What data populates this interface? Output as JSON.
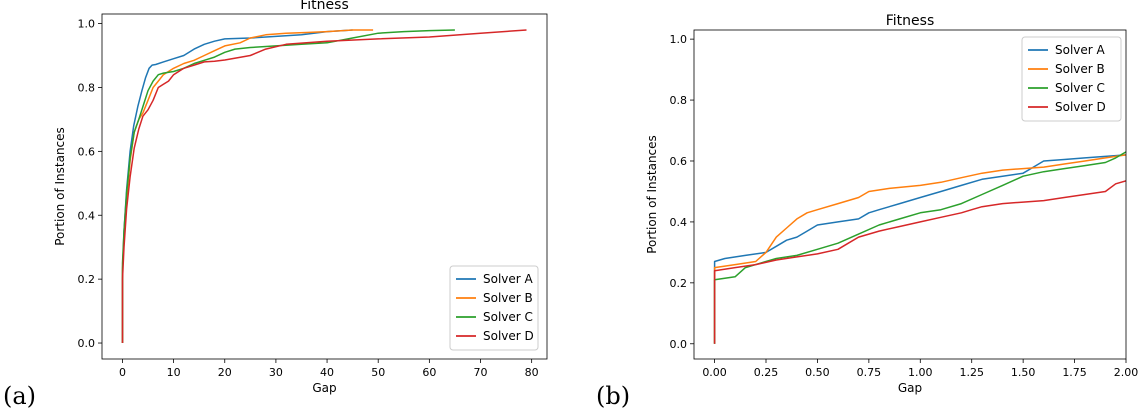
{
  "chart_data": [
    {
      "type": "line",
      "panel_label": "(a)",
      "title": "Fitness",
      "xlabel": "Gap",
      "ylabel": "Portion of Instances",
      "xlim": [
        -4.0,
        83.0
      ],
      "ylim": [
        -0.05,
        1.03
      ],
      "xticks": [
        0,
        10,
        20,
        30,
        40,
        50,
        60,
        70,
        80
      ],
      "xtick_labels": [
        "0",
        "10",
        "20",
        "30",
        "40",
        "50",
        "60",
        "70",
        "80"
      ],
      "yticks": [
        0.0,
        0.2,
        0.4,
        0.6,
        0.8,
        1.0
      ],
      "ytick_labels": [
        "0.0",
        "0.2",
        "0.4",
        "0.6",
        "0.8",
        "1.0"
      ],
      "grid": false,
      "legend": "lower-right",
      "series": [
        {
          "name": "Solver A",
          "color": "#1f77b4",
          "x": [
            0,
            0,
            0.3,
            0.8,
            1.5,
            2.2,
            3,
            3.8,
            4.5,
            5.2,
            5.8,
            6.5,
            8,
            10,
            12,
            14,
            16,
            18,
            20,
            25,
            30,
            35,
            40,
            45
          ],
          "y": [
            0,
            0.22,
            0.35,
            0.48,
            0.6,
            0.68,
            0.74,
            0.79,
            0.83,
            0.86,
            0.87,
            0.872,
            0.88,
            0.89,
            0.9,
            0.92,
            0.935,
            0.945,
            0.952,
            0.955,
            0.96,
            0.965,
            0.975,
            0.98
          ]
        },
        {
          "name": "Solver B",
          "color": "#ff7f0e",
          "x": [
            0,
            0,
            0.3,
            0.8,
            1.5,
            2.3,
            3.2,
            4,
            5,
            6,
            7,
            8,
            10,
            12,
            14,
            16,
            18,
            20,
            23,
            25,
            28,
            32,
            36,
            40,
            45,
            49
          ],
          "y": [
            0,
            0.23,
            0.33,
            0.45,
            0.57,
            0.66,
            0.7,
            0.72,
            0.76,
            0.8,
            0.82,
            0.84,
            0.86,
            0.875,
            0.885,
            0.9,
            0.915,
            0.93,
            0.94,
            0.955,
            0.965,
            0.97,
            0.972,
            0.975,
            0.98,
            0.98
          ]
        },
        {
          "name": "Solver C",
          "color": "#2ca02c",
          "x": [
            0,
            0,
            0.3,
            0.8,
            1.5,
            2.3,
            3.2,
            4,
            5,
            6,
            7,
            8,
            10,
            12,
            14,
            16,
            18,
            20,
            22,
            25,
            30,
            35,
            40,
            45,
            50,
            55,
            60,
            65
          ],
          "y": [
            0,
            0.25,
            0.35,
            0.47,
            0.58,
            0.66,
            0.7,
            0.74,
            0.79,
            0.82,
            0.84,
            0.845,
            0.85,
            0.86,
            0.875,
            0.885,
            0.895,
            0.91,
            0.92,
            0.925,
            0.93,
            0.935,
            0.94,
            0.955,
            0.97,
            0.975,
            0.978,
            0.98
          ]
        },
        {
          "name": "Solver D",
          "color": "#d62728",
          "x": [
            0,
            0,
            0.3,
            0.8,
            1.5,
            2.3,
            3.2,
            4,
            5,
            6,
            7,
            8,
            9,
            10,
            11,
            12,
            14,
            16,
            18,
            20,
            25,
            28,
            32,
            40,
            50,
            60,
            70,
            79
          ],
          "y": [
            0,
            0.2,
            0.3,
            0.42,
            0.52,
            0.61,
            0.67,
            0.71,
            0.73,
            0.76,
            0.8,
            0.81,
            0.82,
            0.84,
            0.85,
            0.86,
            0.87,
            0.88,
            0.882,
            0.886,
            0.9,
            0.92,
            0.935,
            0.945,
            0.952,
            0.958,
            0.97,
            0.98
          ]
        }
      ]
    },
    {
      "type": "line",
      "panel_label": "(b)",
      "title": "Fitness",
      "xlabel": "Gap",
      "ylabel": "Portion of Instances",
      "xlim": [
        -0.1,
        2.0
      ],
      "ylim": [
        -0.05,
        1.03
      ],
      "xticks": [
        0,
        0.25,
        0.5,
        0.75,
        1.0,
        1.25,
        1.5,
        1.75,
        2.0
      ],
      "xtick_labels": [
        "0.00",
        "0.25",
        "0.50",
        "0.75",
        "1.00",
        "1.25",
        "1.50",
        "1.75",
        "2.00"
      ],
      "yticks": [
        0.0,
        0.2,
        0.4,
        0.6,
        0.8,
        1.0
      ],
      "ytick_labels": [
        "0.0",
        "0.2",
        "0.4",
        "0.6",
        "0.8",
        "1.0"
      ],
      "grid": false,
      "legend": "top-right",
      "series": [
        {
          "name": "Solver A",
          "color": "#1f77b4",
          "x": [
            0,
            0,
            0.05,
            0.15,
            0.25,
            0.3,
            0.35,
            0.4,
            0.45,
            0.5,
            0.6,
            0.7,
            0.75,
            0.8,
            0.9,
            1.0,
            1.1,
            1.2,
            1.3,
            1.4,
            1.5,
            1.55,
            1.6,
            1.7,
            1.8,
            1.9,
            2.0
          ],
          "y": [
            0,
            0.27,
            0.28,
            0.29,
            0.3,
            0.32,
            0.34,
            0.35,
            0.37,
            0.39,
            0.4,
            0.41,
            0.43,
            0.44,
            0.46,
            0.48,
            0.5,
            0.52,
            0.54,
            0.55,
            0.56,
            0.58,
            0.6,
            0.605,
            0.61,
            0.615,
            0.62
          ]
        },
        {
          "name": "Solver B",
          "color": "#ff7f0e",
          "x": [
            0,
            0,
            0.1,
            0.2,
            0.25,
            0.3,
            0.35,
            0.4,
            0.45,
            0.5,
            0.6,
            0.7,
            0.75,
            0.85,
            1.0,
            1.1,
            1.2,
            1.3,
            1.4,
            1.5,
            1.6,
            1.7,
            1.8,
            1.9,
            2.0
          ],
          "y": [
            0,
            0.25,
            0.26,
            0.27,
            0.3,
            0.35,
            0.38,
            0.41,
            0.43,
            0.44,
            0.46,
            0.48,
            0.5,
            0.51,
            0.52,
            0.53,
            0.545,
            0.56,
            0.57,
            0.575,
            0.58,
            0.59,
            0.6,
            0.61,
            0.62
          ]
        },
        {
          "name": "Solver C",
          "color": "#2ca02c",
          "x": [
            0,
            0,
            0.1,
            0.15,
            0.25,
            0.3,
            0.4,
            0.5,
            0.6,
            0.7,
            0.8,
            0.9,
            1.0,
            1.1,
            1.2,
            1.3,
            1.4,
            1.5,
            1.6,
            1.7,
            1.8,
            1.9,
            1.95,
            2.0
          ],
          "y": [
            0,
            0.21,
            0.22,
            0.25,
            0.27,
            0.28,
            0.29,
            0.31,
            0.33,
            0.36,
            0.39,
            0.41,
            0.43,
            0.44,
            0.46,
            0.49,
            0.52,
            0.55,
            0.565,
            0.575,
            0.585,
            0.595,
            0.61,
            0.63
          ]
        },
        {
          "name": "Solver D",
          "color": "#d62728",
          "x": [
            0,
            0,
            0.1,
            0.2,
            0.3,
            0.4,
            0.5,
            0.6,
            0.65,
            0.7,
            0.8,
            0.9,
            1.0,
            1.1,
            1.2,
            1.25,
            1.3,
            1.4,
            1.5,
            1.6,
            1.7,
            1.8,
            1.9,
            1.95,
            2.0
          ],
          "y": [
            0,
            0.24,
            0.25,
            0.26,
            0.275,
            0.285,
            0.295,
            0.31,
            0.33,
            0.35,
            0.37,
            0.385,
            0.4,
            0.415,
            0.43,
            0.44,
            0.45,
            0.46,
            0.465,
            0.47,
            0.48,
            0.49,
            0.5,
            0.525,
            0.535
          ]
        }
      ]
    }
  ]
}
